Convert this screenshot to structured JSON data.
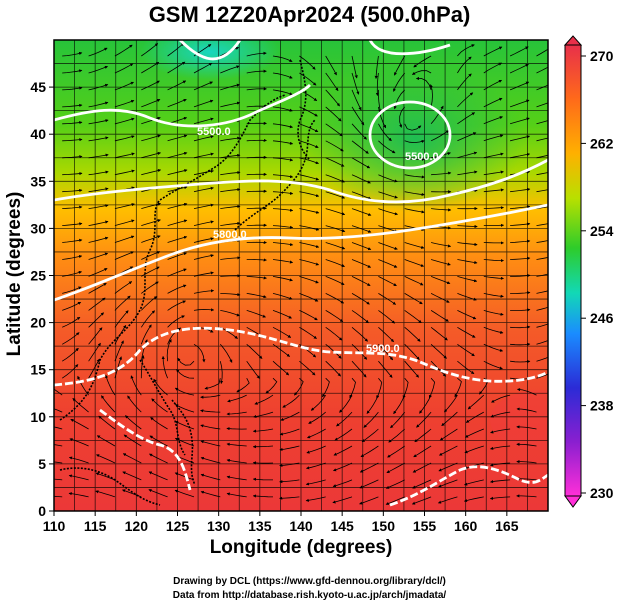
{
  "title": "GSM 12Z20Apr2024 (500.0hPa)",
  "x_axis": {
    "label": "Longitude (degrees)",
    "ticks": [
      "110",
      "115",
      "120",
      "125",
      "130",
      "135",
      "140",
      "145",
      "150",
      "155",
      "160",
      "165"
    ]
  },
  "y_axis": {
    "label": "Latitude  (degrees)",
    "ticks": [
      "0",
      "5",
      "10",
      "15",
      "20",
      "25",
      "30",
      "35",
      "40",
      "45"
    ]
  },
  "colorbar": {
    "ticks": [
      "270",
      "262",
      "254",
      "246",
      "238",
      "230"
    ],
    "colors": [
      "#e8304a",
      "#ff7a18",
      "#ffb400",
      "#9ee000",
      "#2fcc2a",
      "#10d9c0",
      "#1a8cff",
      "#2b2bd6",
      "#8a1fd0",
      "#ff2fd8"
    ]
  },
  "map": {
    "extent": {
      "lon": [
        110,
        170
      ],
      "lat": [
        0,
        50
      ]
    },
    "contour_labels": [
      "5500.0",
      "5500.0",
      "5800.0",
      "5900.0"
    ],
    "field_colors": [
      "#14c9c9",
      "#2fcc2a",
      "#8bd800",
      "#ffc000",
      "#ff8c10",
      "#f25a28",
      "#ee3a3a"
    ]
  },
  "credits": {
    "line1": "Drawing by DCL (https://www.gfd-dennou.org/library/dcl/)",
    "line2": "Data from http://database.rish.kyoto-u.ac.jp/arch/jmadata/"
  }
}
